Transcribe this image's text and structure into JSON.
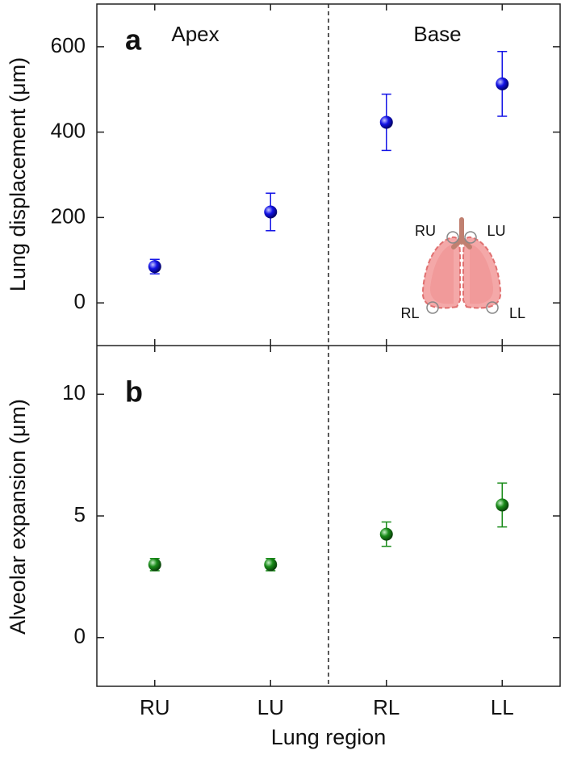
{
  "chart_data": [
    {
      "type": "scatter",
      "ylabel": "Lung displacement (μm)",
      "panel_label": "a",
      "annotations": [
        "Apex",
        "Base"
      ],
      "inset_labels": [
        "RU",
        "LU",
        "RL",
        "LL"
      ],
      "values": [
        85,
        213,
        423,
        513
      ],
      "errors": [
        17,
        44,
        66,
        76
      ],
      "color": "#1414e6",
      "ylim": [
        -100,
        700
      ],
      "yticks": [
        0,
        200,
        400,
        600
      ]
    },
    {
      "type": "scatter",
      "ylabel": "Alveolar expansion (μm)",
      "panel_label": "b",
      "xlabel": "Lung region",
      "categories": [
        "RU",
        "LU",
        "RL",
        "LL"
      ],
      "values": [
        3.0,
        3.0,
        4.25,
        5.45
      ],
      "errors": [
        0.25,
        0.25,
        0.5,
        0.9
      ],
      "color": "#1a8c1a",
      "ylim": [
        -2,
        12
      ],
      "yticks": [
        0,
        5,
        10
      ]
    }
  ]
}
